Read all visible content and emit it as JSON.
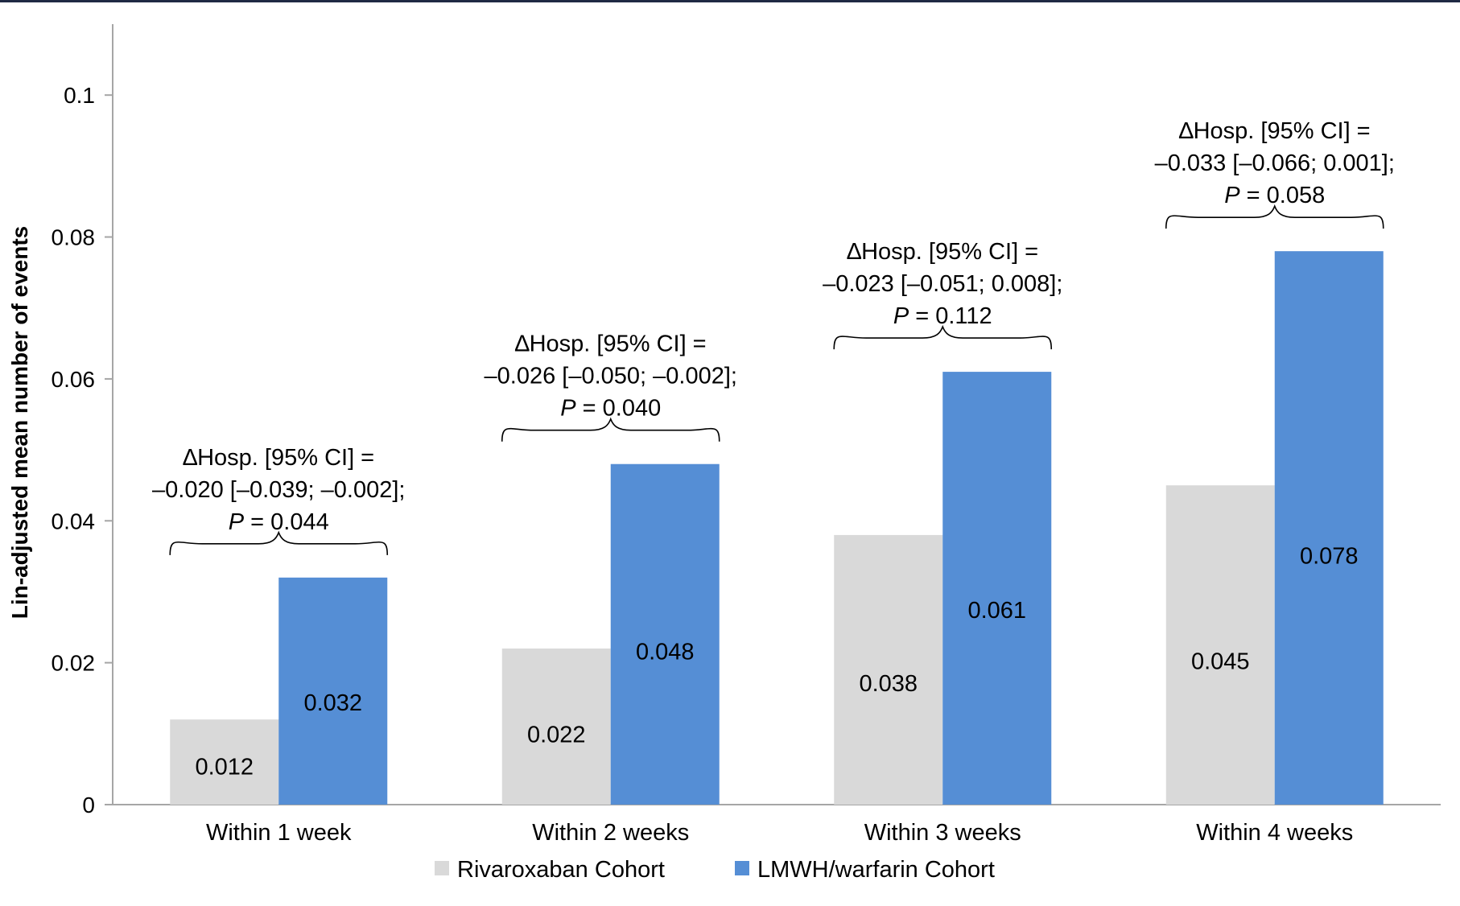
{
  "chart_data": {
    "type": "bar",
    "title": "",
    "xlabel": "",
    "ylabel": "Lin-adjusted mean number of events",
    "ylim": [
      0,
      0.11
    ],
    "yticks": [
      0,
      0.02,
      0.04,
      0.06,
      0.08,
      0.1
    ],
    "ytick_labels": [
      "0",
      "0.02",
      "0.04",
      "0.06",
      "0.08",
      "0.1"
    ],
    "grid": false,
    "legend_position": "bottom",
    "categories": [
      "Within 1 week",
      "Within 2 weeks",
      "Within 3 weeks",
      "Within 4 weeks"
    ],
    "series": [
      {
        "name": "Rivaroxaban Cohort",
        "color": "#d9d9d9",
        "values": [
          0.012,
          0.022,
          0.038,
          0.045
        ],
        "labels": [
          "0.012",
          "0.022",
          "0.038",
          "0.045"
        ]
      },
      {
        "name": "LMWH/warfarin Cohort",
        "color": "#558ed5",
        "values": [
          0.032,
          0.048,
          0.061,
          0.078
        ],
        "labels": [
          "0.032",
          "0.048",
          "0.061",
          "0.078"
        ]
      }
    ],
    "annotations": [
      {
        "line1": "∆Hosp. [95% CI] =",
        "line2": "–0.020 [–0.039; –0.002];",
        "p_label": "P",
        "p_value": "= 0.044"
      },
      {
        "line1": "∆Hosp. [95% CI] =",
        "line2": "–0.026 [–0.050; –0.002];",
        "p_label": "P",
        "p_value": "= 0.040"
      },
      {
        "line1": "∆Hosp. [95% CI] =",
        "line2": "–0.023 [–0.051; 0.008];",
        "p_label": "P",
        "p_value": "= 0.112"
      },
      {
        "line1": "∆Hosp. [95% CI] =",
        "line2": "–0.033 [–0.066; 0.001];",
        "p_label": "P",
        "p_value": "= 0.058"
      }
    ]
  }
}
